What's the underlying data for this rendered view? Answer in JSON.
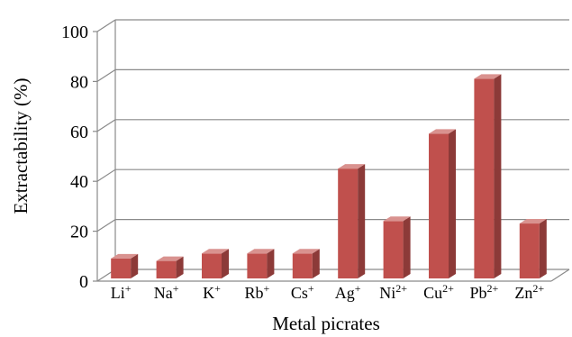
{
  "chart_data": {
    "type": "bar",
    "title": "",
    "xlabel": "Metal picrates",
    "ylabel": "Extractability  (%)",
    "ylim": [
      0,
      100
    ],
    "yticks": [
      0,
      20,
      40,
      60,
      80,
      100
    ],
    "grid": true,
    "three_d": true,
    "categories": [
      {
        "base": "Li",
        "charge": "+"
      },
      {
        "base": "Na",
        "charge": "+"
      },
      {
        "base": "K",
        "charge": "+"
      },
      {
        "base": "Rb",
        "charge": "+"
      },
      {
        "base": "Cs",
        "charge": "+"
      },
      {
        "base": "Ag",
        "charge": "+"
      },
      {
        "base": "Ni",
        "charge": "2+"
      },
      {
        "base": "Cu",
        "charge": "2+"
      },
      {
        "base": "Pb",
        "charge": "2+"
      },
      {
        "base": "Zn",
        "charge": "2+"
      }
    ],
    "values": [
      8,
      7,
      10,
      10,
      10,
      44,
      23,
      58,
      80,
      22
    ],
    "colors": {
      "bar_front": "#c0504d",
      "bar_top": "#d9928f",
      "bar_side": "#8c3a38",
      "grid": "#8a8a8a"
    }
  }
}
